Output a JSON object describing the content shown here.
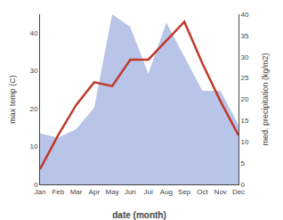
{
  "chart_data": {
    "type": "line",
    "xlabel": "date (month)",
    "ylabel": "max temp (C)",
    "y2label": "med. precipitation (kg/m2)",
    "categories": [
      "Jan",
      "Feb",
      "Mar",
      "Apr",
      "May",
      "Jun",
      "Jul",
      "Aug",
      "Sep",
      "Oct",
      "Nov",
      "Dec"
    ],
    "series": [
      {
        "type": "area",
        "axis": "y2",
        "color": "#b8c4e8",
        "values": [
          12,
          11,
          13,
          18,
          40,
          37,
          26,
          38,
          30,
          22,
          22,
          14
        ]
      },
      {
        "type": "line",
        "color": "#c0392b",
        "values": [
          4,
          13,
          21,
          27,
          26,
          33,
          33,
          38,
          43,
          32,
          22,
          13
        ]
      }
    ],
    "ylim": [
      0,
      45
    ],
    "yticks": [
      0,
      10,
      20,
      30,
      40
    ],
    "y2lim": [
      0,
      40
    ],
    "y2ticks": [
      0,
      5,
      10,
      15,
      20,
      25,
      30,
      35,
      40
    ],
    "grid": false
  }
}
